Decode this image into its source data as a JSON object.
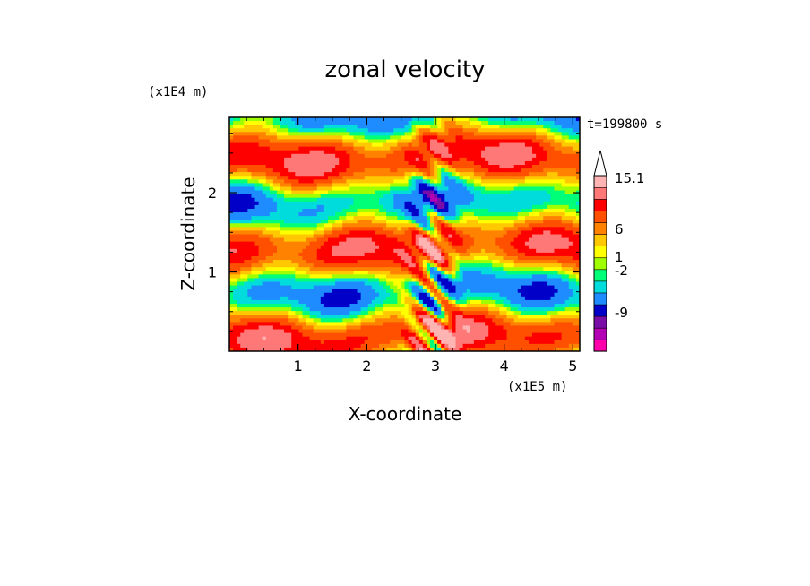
{
  "chart_data": {
    "type": "heatmap",
    "title": "zonal velocity",
    "xlabel": "X-coordinate",
    "ylabel": "Z-coordinate",
    "x_unit": "(x1E5 m)",
    "y_unit": "(x1E4 m)",
    "time_label": "t=199800 s",
    "xlim": [
      0,
      5.1
    ],
    "ylim": [
      0,
      2.95
    ],
    "x_ticks": [
      1,
      2,
      3,
      4,
      5
    ],
    "y_ticks": [
      1,
      2
    ],
    "colorbar": {
      "levels": [
        {
          "color": "#ff00aa"
        },
        {
          "color": "#b400b4"
        },
        {
          "color": "#7a0ca8"
        },
        {
          "color": "#0000c8"
        },
        {
          "color": "#1e8cff"
        },
        {
          "color": "#00dcdc"
        },
        {
          "color": "#00ff78"
        },
        {
          "color": "#a0ff00"
        },
        {
          "color": "#ffff00"
        },
        {
          "color": "#ffc800"
        },
        {
          "color": "#ff8200"
        },
        {
          "color": "#ff5000"
        },
        {
          "color": "#ff0000"
        },
        {
          "color": "#ff7878"
        },
        {
          "color": "#ffb4b4"
        },
        {
          "color": "#ffffff"
        }
      ],
      "tick_labels": [
        "15.1",
        "6",
        "1",
        "-2",
        "-9"
      ]
    }
  }
}
